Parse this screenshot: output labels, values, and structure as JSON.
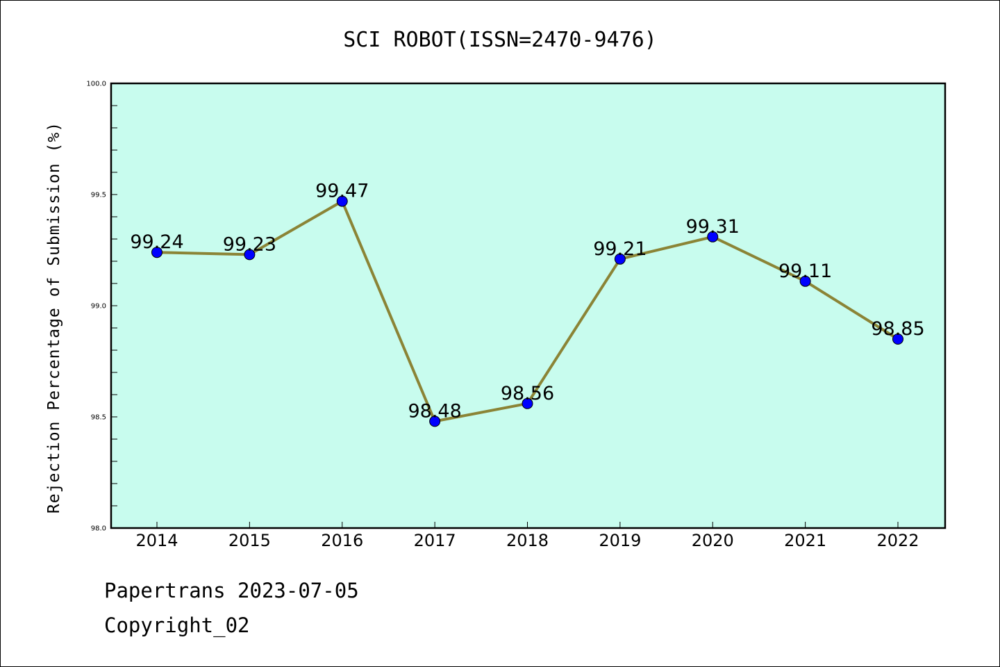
{
  "chart_data": {
    "type": "line",
    "title": "SCI ROBOT(ISSN=2470-9476)",
    "xlabel": "",
    "ylabel": "Rejection Percentage of Submission (%)",
    "categories": [
      "2014",
      "2015",
      "2016",
      "2017",
      "2018",
      "2019",
      "2020",
      "2021",
      "2022"
    ],
    "series": [
      {
        "values": [
          99.24,
          99.23,
          99.47,
          98.48,
          98.56,
          99.21,
          99.31,
          99.11,
          98.85
        ]
      }
    ],
    "data_labels": [
      "99.24",
      "99.23",
      "99.47",
      "98.48",
      "98.56",
      "99.21",
      "99.31",
      "99.11",
      "98.85"
    ],
    "ylim": [
      98.0,
      100.0
    ],
    "yticks": [
      "98.0",
      "98.5",
      "99.0",
      "99.5",
      "100.0"
    ],
    "grid": false,
    "colors": {
      "plot_background": "#c8fcee",
      "line": "#8b8436",
      "marker": "#0000ff"
    }
  },
  "footer": {
    "line1": "Papertrans 2023-07-05",
    "line2": "Copyright_02"
  }
}
